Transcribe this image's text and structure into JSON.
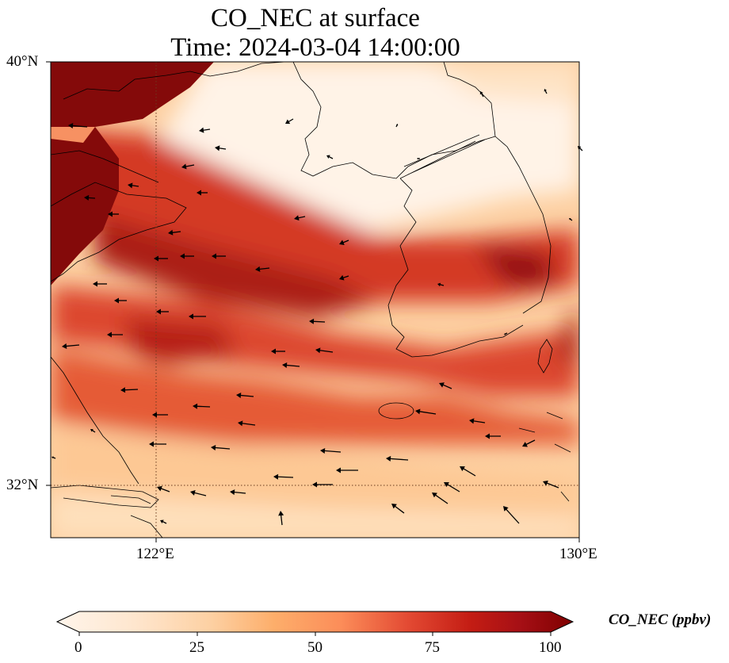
{
  "title": {
    "line1": "CO_NEC at surface",
    "line2": "Time: 2024-03-04 14:00:00"
  },
  "map": {
    "extent": {
      "lon_min": 120,
      "lon_max": 130,
      "lat_min": 31,
      "lat_max": 40
    },
    "lat_labels": [
      "40°N",
      "32°N"
    ],
    "lon_labels": [
      "122°E",
      "130°E"
    ],
    "gridlines": {
      "lon": 122,
      "lat": 32,
      "style": "dotted"
    },
    "field": "CO_NEC",
    "colormap": [
      "#fff5eb",
      "#fee6ce",
      "#fdd0a2",
      "#fdae6b",
      "#fd8d3c",
      "#e8542c",
      "#c9241c",
      "#a50f15",
      "#7f0000"
    ],
    "wind_vectors": "shown"
  },
  "colorbar": {
    "label": "CO_NEC (ppbv)",
    "ticks": [
      "0",
      "25",
      "50",
      "75",
      "100"
    ],
    "min": 0,
    "max": 100,
    "extend": "both"
  }
}
